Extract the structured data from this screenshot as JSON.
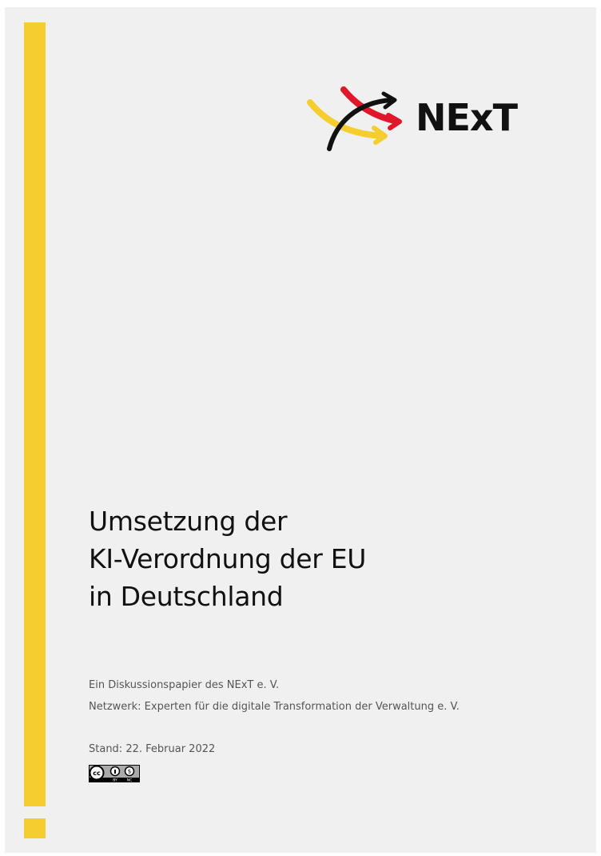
{
  "logo": {
    "text": "NExT",
    "colors": {
      "yellow": "#f5cd2f",
      "red": "#e0162b",
      "black": "#111111"
    }
  },
  "title": {
    "lines": [
      "Umsetzung der",
      "KI-Verordnung der EU",
      "in Deutschland"
    ]
  },
  "subtitle": {
    "line1": "Ein Diskussionspapier des NExT e. V.",
    "line2": "Netzwerk: Experten für die digitale Transformation der Verwaltung e. V."
  },
  "date": "Stand: 22. Februar 2022",
  "license": {
    "icon": "cc-by-nc-icon",
    "labels": [
      "BY",
      "NC"
    ]
  },
  "accent_color": "#f5cd2f"
}
